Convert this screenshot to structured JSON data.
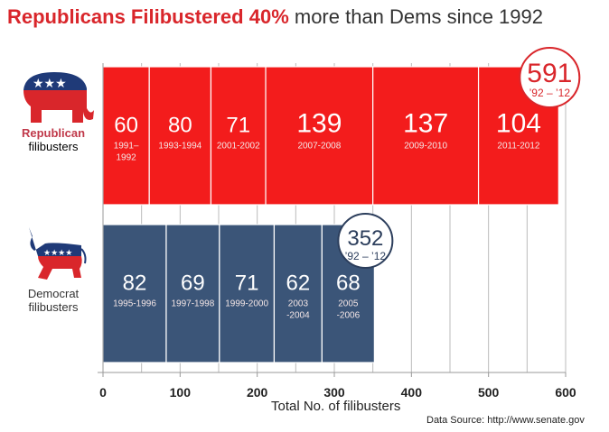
{
  "chart_data": {
    "type": "bar",
    "orientation": "horizontal-stacked",
    "title_highlight": "Republicans Filibustered 40%",
    "title_rest": " more than Dems since 1992",
    "xlabel": "Total No. of filibusters",
    "xlim": [
      0,
      600
    ],
    "xticks": [
      "0",
      "100",
      "200",
      "300",
      "400",
      "500",
      "600"
    ],
    "grid": true,
    "source": "Data Source: http://www.senate.gov",
    "series": [
      {
        "name_a": "Republican",
        "name_b": "filibusters",
        "color": "#f31c1c",
        "segments": [
          {
            "value": 60,
            "label": "1991–\n1992"
          },
          {
            "value": 80,
            "label": "1993-1994"
          },
          {
            "value": 71,
            "label": "2001-2002"
          },
          {
            "value": 139,
            "label": "2007-2008"
          },
          {
            "value": 137,
            "label": "2009-2010"
          },
          {
            "value": 104,
            "label": "2011-2012"
          }
        ],
        "total": "591",
        "total_range": "’92 – ’12",
        "total_color": "#d9262b"
      },
      {
        "name_a": "Democrat",
        "name_b": "filibusters",
        "color": "#3b5578",
        "segments": [
          {
            "value": 82,
            "label": "1995-1996"
          },
          {
            "value": 69,
            "label": "1997-1998"
          },
          {
            "value": 71,
            "label": "1999-2000"
          },
          {
            "value": 62,
            "label": "2003\n-2004"
          },
          {
            "value": 68,
            "label": "2005\n-2006"
          }
        ],
        "total": "352",
        "total_range": "’92 – ’12",
        "total_color": "#2c3e5c"
      }
    ]
  }
}
